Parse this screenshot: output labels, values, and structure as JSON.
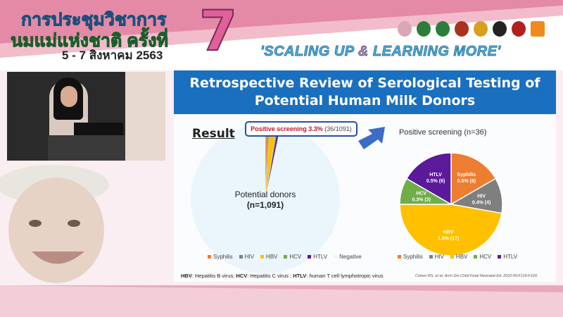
{
  "header": {
    "thai_line1": "การประชุมวิชาการ",
    "thai_line2": "นมแม่แห่งชาติ ครั้งที่",
    "thai_dates": "5 - 7 สิงหาคม 2563",
    "edition_number": "7",
    "slogan_part1": "'SCALING UP ",
    "slogan_amp": "&",
    "slogan_part2": " LEARNING MORE'"
  },
  "slide": {
    "title_line1": "Retrospective Review of Serological Testing of",
    "title_line2": "Potential Human Milk Donors",
    "result_heading": "Result",
    "callout_bold": "Positive screening 3.3%",
    "callout_rest": " (36/1091)",
    "footnote_hbv": "HBV",
    "footnote_hbv_text": ": Hepatitis B virus; ",
    "footnote_hcv": "HCV",
    "footnote_hcv_text": ": Hepatitis C virus ; ",
    "footnote_htlv": "HTLV",
    "footnote_htlv_text": ": human T cell lymphotropic virus",
    "citation": "Cohen RS, et al. Arch Dis Child Fetal Neonatal Ed. 2010;95:F118-F120."
  },
  "colors": {
    "Syphilis": "#ed7d31",
    "HIV": "#7f7f7f",
    "HBV": "#ffc000",
    "HCV": "#70ad47",
    "HTLV": "#5a1a9a",
    "Negative": "#eaf6fb",
    "title_bar": "#1b6fbf"
  },
  "chart_data": [
    {
      "type": "pie",
      "center_label_line1": "Potential donors",
      "center_label_line2": "(n=1,091)",
      "categories": [
        "Syphilis",
        "HIV",
        "HBV",
        "HCV",
        "HTLV",
        "Negative"
      ],
      "values": [
        6,
        4,
        17,
        3,
        6,
        1055
      ],
      "legend_position": "bottom"
    },
    {
      "type": "pie",
      "title": "Positive screening (n=36)",
      "categories": [
        "Syphilis",
        "HIV",
        "HBV",
        "HCV",
        "HTLV"
      ],
      "values": [
        6,
        4,
        17,
        3,
        6
      ],
      "data_labels": [
        "0.5% (6)",
        "0.4% (4)",
        "1.6% (17)",
        "0.3% (3)",
        "0.5% (6)"
      ],
      "legend_position": "bottom"
    }
  ]
}
